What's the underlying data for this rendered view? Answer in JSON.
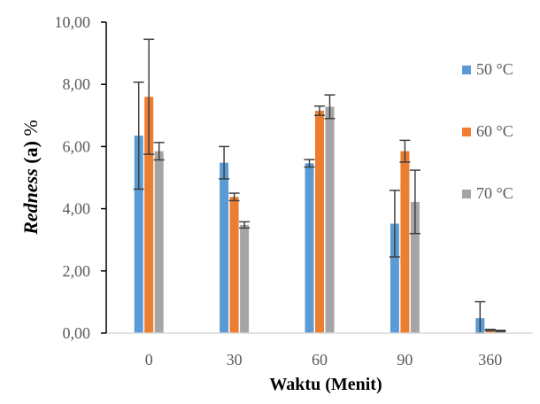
{
  "chart_data": {
    "type": "bar",
    "categories": [
      "0",
      "30",
      "60",
      "90",
      "360"
    ],
    "xlabel": "Waktu (Menit)",
    "ylabel": {
      "italic": "Redness",
      "bold": " (a)",
      "plain": " %"
    },
    "ylim": [
      0,
      10
    ],
    "yticks": [
      "0,00",
      "2,00",
      "4,00",
      "6,00",
      "8,00",
      "10,00"
    ],
    "grid": false,
    "legend_position": "right",
    "series": [
      {
        "name": "50 °C",
        "color": "#5B9BD5",
        "values": [
          6.35,
          5.48,
          5.46,
          3.52,
          0.48
        ],
        "errors": [
          1.72,
          0.52,
          0.12,
          1.07,
          0.53
        ]
      },
      {
        "name": "60 °C",
        "color": "#ED7D31",
        "values": [
          7.6,
          4.38,
          7.15,
          5.85,
          0.1
        ],
        "errors": [
          1.85,
          0.12,
          0.15,
          0.35,
          0.02
        ]
      },
      {
        "name": "70 °C",
        "color": "#A5A5A5",
        "values": [
          5.85,
          3.48,
          7.28,
          4.22,
          0.07
        ],
        "errors": [
          0.28,
          0.1,
          0.38,
          1.02,
          0.02
        ]
      }
    ]
  }
}
